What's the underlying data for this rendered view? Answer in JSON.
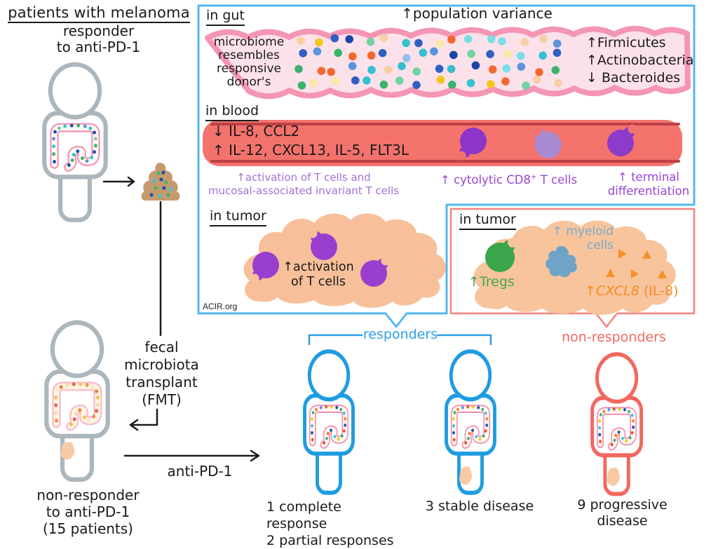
{
  "left": {
    "title": "patients with melanoma",
    "responder": {
      "lines": [
        "responder",
        "to anti-PD-1"
      ]
    },
    "nonresponder": {
      "lines": [
        "non-responder",
        "to anti-PD-1",
        "(15 patients)"
      ]
    },
    "fmt": {
      "lines": [
        "fecal",
        "microbiota",
        "transplant",
        "(FMT)"
      ]
    },
    "anti_pd1": "anti-PD-1"
  },
  "panel": {
    "gut": {
      "heading": "in gut",
      "variance": "↑population variance",
      "donor": [
        "microbiome",
        "resembles",
        "responsive",
        "donor's"
      ],
      "flora": [
        "↑Firmicutes",
        "↑Actinobacteria",
        "↓ Bacteroides"
      ]
    },
    "blood": {
      "heading": "in blood",
      "decreased": "↓ IL-8, CCL2",
      "increased": "↑ IL-12, CXCL13, IL-5, FLT3L",
      "activation_line1": "↑activation of T cells and",
      "activation_line2": "mucosal-associated invariant T cells",
      "cytolytic_pre": "↑ cytolytic CD8",
      "cytolytic_sup": "+",
      "cytolytic_post": " T cells",
      "terminal_line1": "↑ terminal",
      "terminal_line2": "differentiation"
    },
    "tumor_responders": {
      "heading": "in tumor",
      "label_line1": "↑activation",
      "label_line2": "of T cells",
      "credit": "ACIR.org"
    },
    "tumor_nonresponders": {
      "heading": "in tumor",
      "tregs": "↑Tregs",
      "myeloid_line1": "↑ myeloid",
      "myeloid_line2": "cells",
      "cxcl8_arrow": "↑",
      "cxcl8_gene": "CXCL8",
      "cxcl8_suffix": " (IL-8)"
    }
  },
  "outcomes": {
    "responders_label": "responders",
    "nonresponders_label": "non-responders",
    "complete": "1 complete response",
    "partial": "2 partial responses",
    "stable": "3 stable disease",
    "progressive_line1": "9 progressive",
    "progressive_line2": "disease"
  },
  "colors": {
    "responder_blue": "#1e9ce2",
    "nonresponder_red": "#f2685f",
    "panel_blue_border": "#55b7f2",
    "panel_red_border": "#f4837b",
    "gut_band_pink": "#f495b3",
    "vessel_red": "#f3726b",
    "tcell_purple": "#9a3ed0",
    "purple_text": "#9a44d6",
    "tregs_green": "#3aa54a",
    "myeloid_blue": "#6fa3c8",
    "cxcl8_orange": "#f68b21",
    "tumor_tissue": "#f8c49c"
  }
}
